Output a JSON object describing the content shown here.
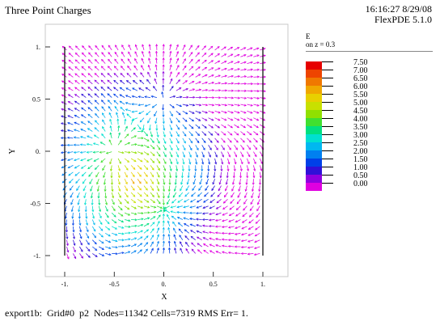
{
  "header": {
    "title": "Three Point Charges",
    "timestamp": "16:16:27 8/29/08",
    "version": "FlexPDE 5.1.0"
  },
  "footer": {
    "status": "export1b:  Grid#0  p2  Nodes=11342 Cells=7319 RMS Err= 1."
  },
  "legend": {
    "variable": "E",
    "subtitle": "on z = 0.3",
    "levels": [
      "7.50",
      "7.00",
      "6.50",
      "6.00",
      "5.50",
      "5.00",
      "4.50",
      "4.00",
      "3.50",
      "3.00",
      "2.50",
      "2.00",
      "1.50",
      "1.00",
      "0.50",
      "0.00"
    ],
    "colors": [
      "#e60000",
      "#ee4400",
      "#f07800",
      "#f0a800",
      "#e8d000",
      "#c8e000",
      "#90e000",
      "#40e030",
      "#00e080",
      "#00e0d0",
      "#00b8f0",
      "#0080f0",
      "#0040e8",
      "#3010d8",
      "#9000e0",
      "#e000e0"
    ]
  },
  "chart_data": {
    "type": "vector_field",
    "xlabel": "X",
    "ylabel": "Y",
    "xlim": [
      -1,
      1
    ],
    "ylim": [
      -1,
      1
    ],
    "xticks": [
      "-1.",
      "-0.5",
      "0.",
      "0.5",
      "1."
    ],
    "yticks": [
      "1.",
      "0.5",
      "0.",
      "-0.5",
      "-1."
    ],
    "charges": [
      {
        "x": 0.0,
        "y": 0.5,
        "q": 1
      },
      {
        "x": -0.5,
        "y": 0.0,
        "q": 1
      },
      {
        "x": 0.0,
        "y": -0.55,
        "q": -1
      }
    ]
  }
}
